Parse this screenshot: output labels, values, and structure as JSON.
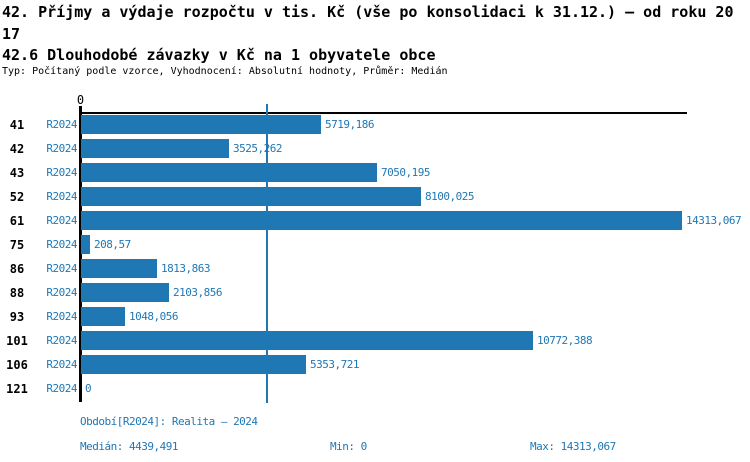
{
  "header": {
    "title_lines": [
      "42. Příjmy a výdaje rozpočtu v tis. Kč (vše po konsolidaci k 31.12.) – od roku 20",
      "17"
    ],
    "subtitle": "42.6 Dlouhodobé závazky v Kč na 1 obyvatele obce",
    "meta": "Typ: Počítaný podle vzorce, Vyhodnocení: Absolutní hodnoty, Průměr: Medián"
  },
  "chart_data": {
    "type": "bar",
    "orientation": "horizontal",
    "title": "42.6 Dlouhodobé závazky v Kč na 1 obyvatele obce",
    "series_label": "R2024",
    "categories": [
      "41",
      "42",
      "43",
      "52",
      "61",
      "75",
      "86",
      "88",
      "93",
      "101",
      "106",
      "121"
    ],
    "values": [
      5719.186,
      3525.262,
      7050.195,
      8100.025,
      14313.067,
      208.57,
      1813.863,
      2103.856,
      1048.056,
      10772.388,
      5353.721,
      0
    ],
    "value_labels": [
      "5719,186",
      "3525,262",
      "7050,195",
      "8100,025",
      "14313,067",
      "208,57",
      "1813,863",
      "2103,856",
      "1048,056",
      "10772,388",
      "5353,721",
      "0"
    ],
    "x_axis": {
      "tick_label": "0",
      "min": 0,
      "max": 14313.067,
      "grid": false
    },
    "median_line_value": 4439.491,
    "legend_position": "none",
    "colors": {
      "bar": "#1f77b4",
      "median_line": "#1f77b4",
      "value_text": "#1f77b4",
      "axis": "#000000"
    }
  },
  "footer": {
    "period_info": "Období[R2024]: Realita – 2024",
    "median_label": "Medián: 4439,491",
    "min_label": "Min: 0",
    "max_label": "Max: 14313,067"
  }
}
